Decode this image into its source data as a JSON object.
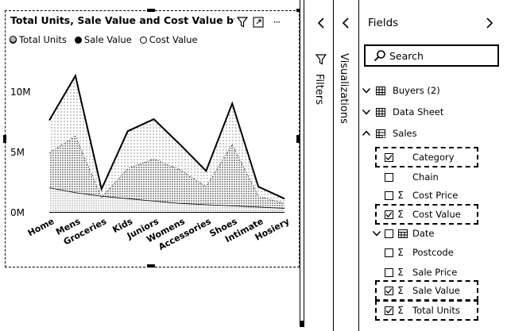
{
  "report": {
    "chart_title": "Total Units, Sale Value and Cost Value by Category",
    "legend": [
      {
        "label": "Total Units",
        "style": "dotted"
      },
      {
        "label": "Sale Value",
        "style": "solid"
      },
      {
        "label": "Cost Value",
        "style": "hollow"
      }
    ],
    "header_icons": [
      "filter-icon",
      "focus-mode-icon",
      "more-options-icon"
    ],
    "more_label": "···"
  },
  "chart_data": {
    "type": "area",
    "title": "Total Units, Sale Value and Cost Value by Category",
    "categories": [
      "Home",
      "Mens",
      "Groceries",
      "Kids",
      "Juniors",
      "Womens",
      "Accessories",
      "Shoes",
      "Intimate",
      "Hosiery"
    ],
    "y_ticks": [
      "0M",
      "5M",
      "10M"
    ],
    "ylim": [
      0,
      11
    ],
    "series": [
      {
        "name": "Sale Value",
        "values": [
          7.6,
          11.3,
          1.9,
          6.7,
          7.7,
          5.6,
          3.4,
          9.0,
          2.1,
          1.1
        ]
      },
      {
        "name": "Cost Value",
        "values": [
          4.9,
          6.3,
          1.2,
          3.6,
          4.4,
          3.5,
          2.1,
          5.6,
          1.3,
          0.7
        ]
      },
      {
        "name": "Total Units",
        "values": [
          2.0,
          1.6,
          1.3,
          1.1,
          0.9,
          0.7,
          0.6,
          0.5,
          0.4,
          0.3
        ]
      }
    ],
    "grid": false,
    "legend_position": "top-left"
  },
  "filters_pane": {
    "label": "Filters"
  },
  "visualizations_pane": {
    "label": "Visualizations"
  },
  "fields_pane": {
    "title": "Fields",
    "search_placeholder": "Search",
    "tables": [
      {
        "name": "Buyers (2)",
        "expanded": false
      },
      {
        "name": "Data Sheet",
        "expanded": false
      },
      {
        "name": "Sales",
        "expanded": true
      }
    ],
    "sales_fields": [
      {
        "name": "Category",
        "checked": true,
        "sigma": false,
        "highlight": true
      },
      {
        "name": "Chain",
        "checked": false,
        "sigma": false,
        "highlight": false
      },
      {
        "name": "Cost Price",
        "checked": false,
        "sigma": true,
        "highlight": false
      },
      {
        "name": "Cost Value",
        "checked": true,
        "sigma": true,
        "highlight": true
      },
      {
        "name": "Date",
        "checked": false,
        "sigma": false,
        "highlight": false,
        "hierarchy": true
      },
      {
        "name": "Postcode",
        "checked": false,
        "sigma": true,
        "highlight": false
      },
      {
        "name": "Sale Price",
        "checked": false,
        "sigma": true,
        "highlight": false
      },
      {
        "name": "Sale Value",
        "checked": true,
        "sigma": true,
        "highlight": true
      },
      {
        "name": "Total Units",
        "checked": true,
        "sigma": true,
        "highlight": true
      }
    ]
  }
}
